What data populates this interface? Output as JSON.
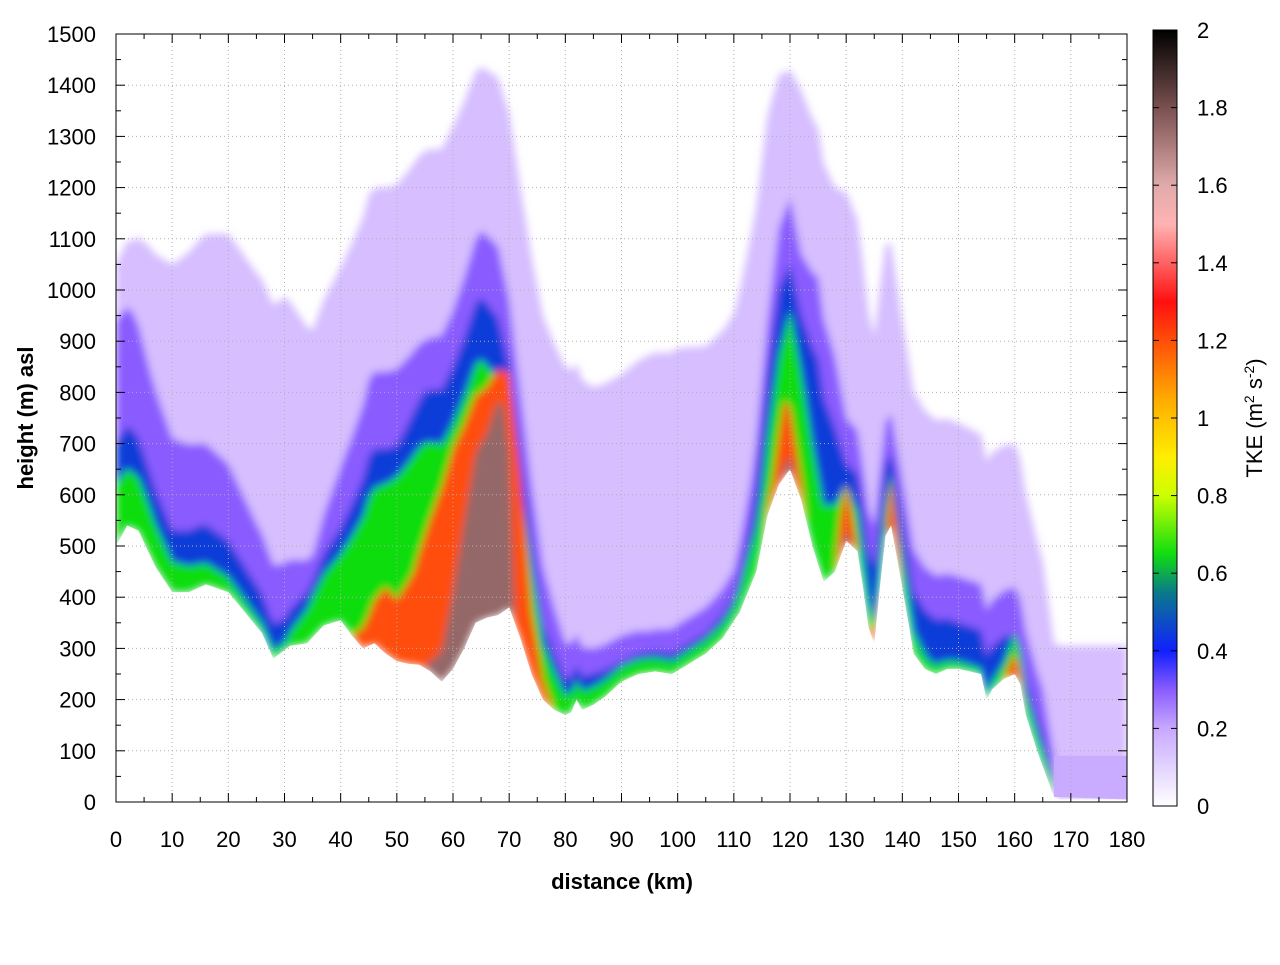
{
  "chart_data": {
    "type": "heatmap",
    "title": "",
    "xlabel": "distance (km)",
    "ylabel": "height (m) asl",
    "xlim": [
      0,
      180
    ],
    "ylim": [
      0,
      1500
    ],
    "x_ticks": [
      0,
      10,
      20,
      30,
      40,
      50,
      60,
      70,
      80,
      90,
      100,
      110,
      120,
      130,
      140,
      150,
      160,
      170,
      180
    ],
    "y_ticks": [
      0,
      100,
      200,
      300,
      400,
      500,
      600,
      700,
      800,
      900,
      1000,
      1100,
      1200,
      1300,
      1400,
      1500
    ],
    "grid": true,
    "colorbar": {
      "label_main": "TKE (m",
      "label_sup1": "2",
      "label_mid": " s",
      "label_sup2": "-2",
      "label_end": ")",
      "range": [
        0,
        2
      ],
      "ticks": [
        "0",
        "0.2",
        "0.4",
        "0.6",
        "0.8",
        "1",
        "1.2",
        "1.4",
        "1.6",
        "1.8",
        "2"
      ],
      "stops": [
        {
          "value": 0.0,
          "color": "#ffffff"
        },
        {
          "value": 0.2,
          "color": "#c8a8ff"
        },
        {
          "value": 0.3,
          "color": "#8a5cff"
        },
        {
          "value": 0.4,
          "color": "#1020ff"
        },
        {
          "value": 0.55,
          "color": "#0a7a8a"
        },
        {
          "value": 0.65,
          "color": "#10dd10"
        },
        {
          "value": 0.8,
          "color": "#ccff00"
        },
        {
          "value": 0.9,
          "color": "#ffee00"
        },
        {
          "value": 1.05,
          "color": "#ffaa00"
        },
        {
          "value": 1.3,
          "color": "#ff1010"
        },
        {
          "value": 1.5,
          "color": "#ffb3b3"
        },
        {
          "value": 1.6,
          "color": "#e0aaaa"
        },
        {
          "value": 1.8,
          "color": "#7a5050"
        },
        {
          "value": 2.0,
          "color": "#000000"
        }
      ]
    },
    "terrain": {
      "x": [
        0,
        2,
        4,
        7,
        10,
        13,
        16,
        20,
        23,
        26,
        28,
        31,
        34,
        37,
        40,
        42,
        44,
        46,
        48,
        50,
        52,
        54,
        56,
        58,
        60,
        62,
        64,
        66,
        68,
        70,
        72,
        74,
        76,
        78,
        80,
        81,
        82,
        83,
        85,
        87,
        90,
        93,
        96,
        99,
        102,
        105,
        108,
        111,
        114,
        116,
        118,
        120,
        122,
        124,
        126,
        128,
        130,
        132,
        133,
        134,
        135,
        136,
        137,
        138,
        140,
        142,
        144,
        146,
        148,
        150,
        152,
        154,
        155,
        156,
        158,
        160,
        161,
        162,
        164,
        166,
        167,
        168,
        170,
        175,
        180
      ],
      "h": [
        500,
        540,
        530,
        460,
        410,
        410,
        425,
        410,
        370,
        330,
        280,
        305,
        310,
        345,
        355,
        325,
        300,
        310,
        290,
        275,
        270,
        268,
        255,
        235,
        260,
        300,
        350,
        360,
        365,
        380,
        320,
        250,
        200,
        180,
        170,
        175,
        200,
        180,
        190,
        205,
        235,
        250,
        255,
        250,
        270,
        290,
        320,
        370,
        450,
        560,
        620,
        650,
        590,
        500,
        430,
        450,
        510,
        490,
        420,
        340,
        310,
        420,
        520,
        540,
        420,
        290,
        260,
        250,
        260,
        260,
        255,
        250,
        200,
        220,
        240,
        250,
        230,
        170,
        100,
        40,
        10,
        5,
        5,
        5,
        5
      ]
    },
    "layers": [
      {
        "value": 0.15,
        "x": [
          0,
          3,
          6,
          10,
          15,
          20,
          25,
          30,
          35,
          40,
          45,
          50,
          55,
          60,
          65,
          68,
          72,
          76,
          80,
          85,
          90,
          95,
          100,
          105,
          110,
          113,
          116,
          118,
          120,
          122,
          125,
          128,
          130,
          135,
          140,
          150,
          160,
          165,
          167,
          170,
          175,
          180
        ],
        "depth": [
          550,
          560,
          600,
          640,
          680,
          700,
          690,
          690,
          600,
          690,
          880,
          930,
          1010,
          1060,
          1080,
          1050,
          880,
          750,
          680,
          620,
          600,
          620,
          630,
          600,
          600,
          680,
          780,
          800,
          780,
          800,
          850,
          750,
          680,
          600,
          520,
          480,
          450,
          400,
          300,
          300,
          300,
          300
        ]
      },
      {
        "value": 0.3,
        "x": [
          0,
          3,
          6,
          10,
          15,
          20,
          25,
          30,
          35,
          40,
          45,
          50,
          55,
          60,
          65,
          68,
          72,
          76,
          80,
          85,
          90,
          95,
          100,
          105,
          110,
          113,
          116,
          118,
          120,
          122,
          125,
          128,
          130,
          135,
          140,
          150,
          160,
          165,
          167
        ],
        "depth": [
          440,
          420,
          360,
          300,
          280,
          250,
          200,
          170,
          160,
          300,
          520,
          570,
          640,
          700,
          760,
          720,
          480,
          260,
          140,
          110,
          90,
          80,
          90,
          90,
          100,
          200,
          380,
          500,
          530,
          480,
          560,
          420,
          240,
          230,
          210,
          180,
          170,
          150,
          80
        ]
      },
      {
        "value": 0.45,
        "x": [
          0,
          3,
          6,
          10,
          15,
          20,
          25,
          30,
          35,
          40,
          45,
          50,
          55,
          60,
          65,
          68,
          72,
          76,
          80,
          85,
          90,
          95,
          100,
          105,
          110,
          113,
          116,
          118,
          120,
          122,
          125,
          128,
          130,
          135,
          140,
          150,
          160,
          165,
          167
        ],
        "depth": [
          200,
          190,
          160,
          120,
          120,
          100,
          80,
          60,
          110,
          180,
          370,
          420,
          540,
          590,
          630,
          580,
          360,
          150,
          70,
          60,
          40,
          40,
          40,
          40,
          50,
          120,
          280,
          380,
          400,
          360,
          400,
          280,
          150,
          150,
          130,
          90,
          80,
          60,
          30
        ]
      },
      {
        "value": 0.65,
        "x": [
          0,
          5,
          10,
          20,
          25,
          30,
          35,
          40,
          45,
          50,
          55,
          60,
          65,
          68,
          72,
          76,
          80,
          90,
          100,
          110,
          115,
          118,
          120,
          122,
          126,
          128,
          130,
          133,
          135,
          137,
          138,
          140,
          145,
          155,
          158,
          160,
          162,
          165,
          167
        ],
        "depth": [
          120,
          100,
          60,
          30,
          20,
          15,
          80,
          130,
          290,
          360,
          440,
          480,
          510,
          460,
          300,
          110,
          40,
          30,
          25,
          30,
          100,
          250,
          310,
          250,
          150,
          130,
          110,
          60,
          40,
          60,
          100,
          60,
          20,
          10,
          30,
          80,
          40,
          30,
          20
        ]
      },
      {
        "value": 1.2,
        "x": [
          42,
          45,
          48,
          50,
          53,
          56,
          58,
          60,
          63,
          66,
          68,
          70,
          72,
          74,
          76,
          78,
          115,
          117,
          119,
          120,
          121,
          123,
          128,
          129,
          130,
          131,
          132,
          134,
          135,
          136,
          137,
          138,
          139,
          140,
          158,
          160,
          161,
          162
        ],
        "depth": [
          0,
          60,
          130,
          120,
          180,
          300,
          380,
          430,
          440,
          450,
          480,
          460,
          320,
          120,
          40,
          0,
          0,
          40,
          150,
          120,
          80,
          0,
          0,
          80,
          110,
          60,
          0,
          0,
          30,
          0,
          0,
          90,
          60,
          0,
          0,
          40,
          20,
          0
        ]
      },
      {
        "value": 1.75,
        "x": [
          55,
          57,
          58,
          60,
          62,
          64,
          66,
          67,
          68,
          69,
          70,
          71,
          118,
          119,
          120,
          121,
          129,
          130,
          131,
          136,
          137,
          138
        ],
        "depth": [
          0,
          40,
          60,
          150,
          250,
          330,
          360,
          390,
          420,
          400,
          300,
          0,
          0,
          20,
          25,
          0,
          0,
          20,
          0,
          0,
          15,
          0
        ]
      }
    ]
  }
}
